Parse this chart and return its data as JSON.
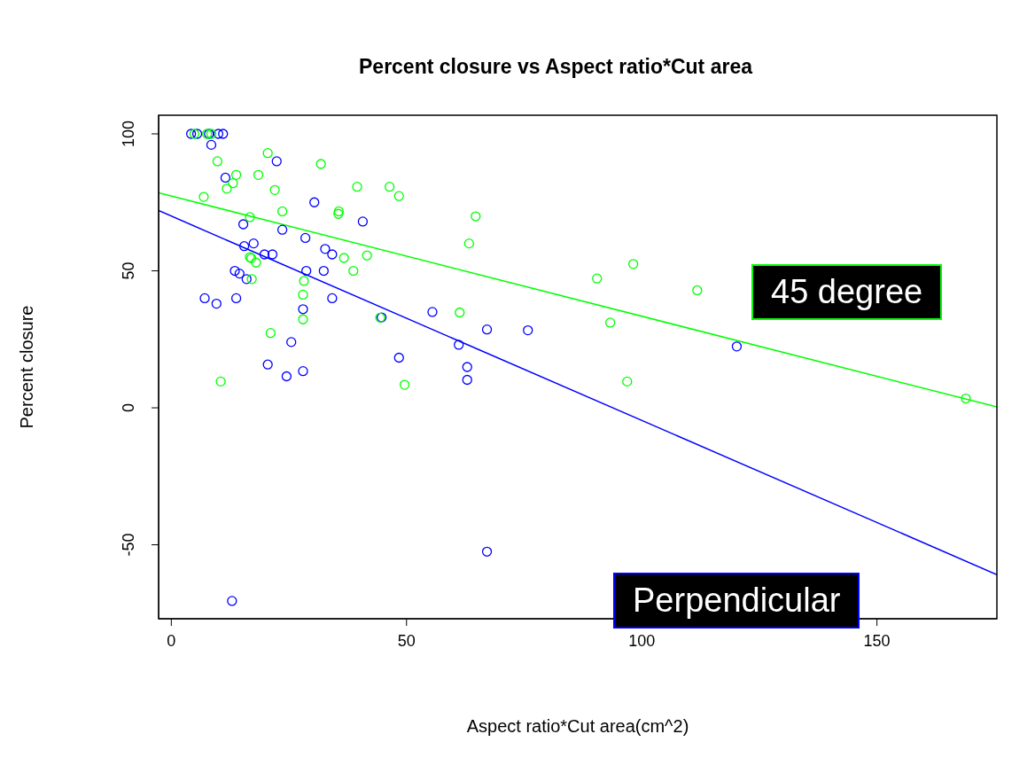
{
  "chart_data": {
    "type": "scatter",
    "title": "Percent closure vs Aspect ratio*Cut area",
    "xlabel": "Aspect ratio*Cut area(cm^2)",
    "ylabel": "Percent closure",
    "xlim": [
      -2.7,
      175.5
    ],
    "ylim": [
      -77,
      106.8
    ],
    "xticks": [
      0,
      50,
      100,
      150
    ],
    "yticks": [
      -50,
      0,
      50,
      100
    ],
    "marker": "circle",
    "series": [
      {
        "name": "Perpendicular",
        "color": "#0000ff",
        "type": "scatter",
        "x": [
          4.2,
          5.5,
          8,
          10,
          11,
          8.5,
          11.5,
          22.4,
          15.3,
          30.4,
          40.7,
          23.6,
          17.5,
          15.5,
          19.8,
          21.5,
          28.5,
          32.7,
          34.2,
          32.4,
          28.7,
          13.5,
          14.5,
          16,
          7.1,
          9.6,
          13.8,
          28,
          34.2,
          55.5,
          44.7,
          67.1,
          75.8,
          25.5,
          48.4,
          61.1,
          20.5,
          24.5,
          28,
          62.9,
          62.9,
          120.2,
          67.1,
          12.9
        ],
        "values": [
          100,
          100,
          100,
          100,
          100,
          96,
          84,
          90,
          67,
          75,
          68,
          65,
          60,
          59,
          56,
          56,
          62,
          58,
          56,
          50,
          50,
          50,
          49,
          47,
          40,
          38,
          40,
          36,
          40,
          35,
          33,
          28.6,
          28.3,
          24,
          18.3,
          23,
          15.8,
          11.5,
          13.4,
          14.9,
          10.2,
          22.4,
          -52.5,
          -70.5
        ]
      },
      {
        "name": "45 degree",
        "color": "#00ff00",
        "type": "scatter",
        "x": [
          4.9,
          7.6,
          8.5,
          20.5,
          31.8,
          9.8,
          13.8,
          18.5,
          13.1,
          11.8,
          22,
          6.9,
          39.5,
          46.4,
          48.4,
          23.6,
          35.6,
          35.5,
          16.7,
          64.7,
          63.3,
          16.7,
          18,
          17,
          17.1,
          41.6,
          36.7,
          38.7,
          28.2,
          28,
          28,
          44.4,
          21.1,
          10.5,
          49.6,
          61.3,
          90.5,
          98.2,
          93.3,
          111.8,
          96.9,
          168.9
        ],
        "values": [
          100,
          100,
          100,
          93,
          89,
          90,
          85,
          85,
          82,
          80,
          79.5,
          77,
          80.7,
          80.7,
          77.3,
          71.7,
          71.7,
          70.8,
          69.6,
          69.9,
          60,
          55,
          53,
          54.6,
          47,
          55.6,
          54.7,
          50,
          46.3,
          41.3,
          32.3,
          32.9,
          27.3,
          9.6,
          8.4,
          34.8,
          47.2,
          52.5,
          31.1,
          42.9,
          9.6,
          3.4
        ]
      },
      {
        "color": "#0000ff",
        "type": "line",
        "marker": "none",
        "x": [
          -2.7,
          175.5
        ],
        "values": [
          72,
          -60.9
        ]
      },
      {
        "color": "#00ff00",
        "type": "line",
        "marker": "none",
        "x": [
          -2.7,
          175.5
        ],
        "values": [
          78.5,
          0.3
        ]
      }
    ]
  }
}
